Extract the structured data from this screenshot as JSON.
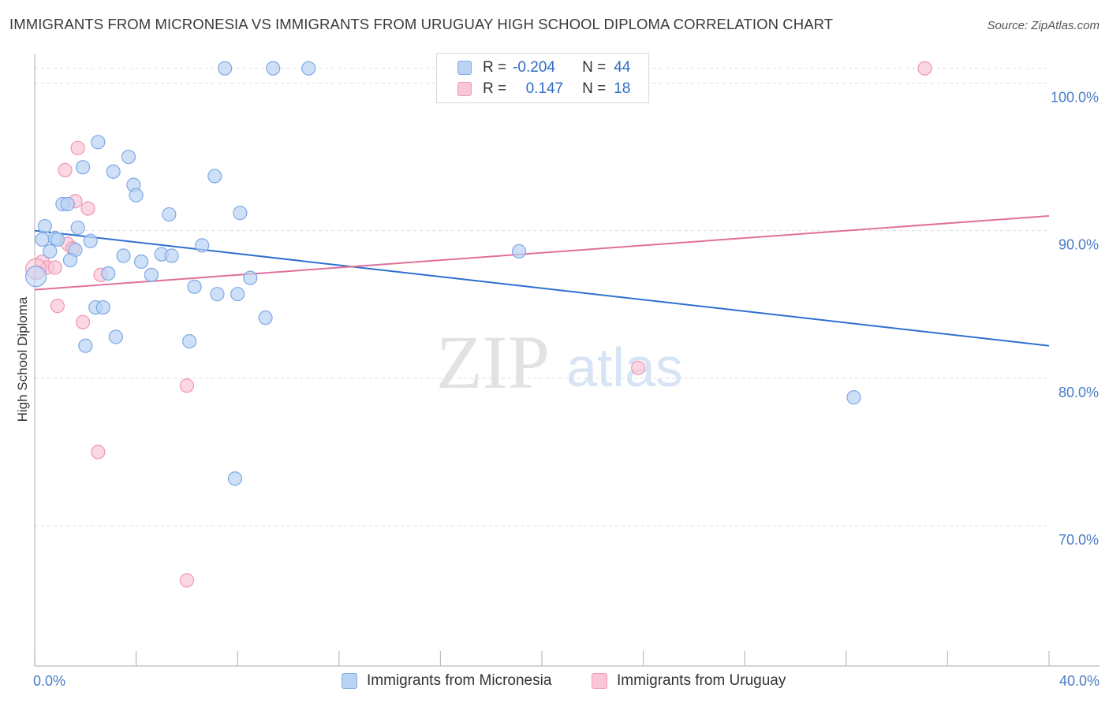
{
  "title": "IMMIGRANTS FROM MICRONESIA VS IMMIGRANTS FROM URUGUAY HIGH SCHOOL DIPLOMA CORRELATION CHART",
  "source": "Source: ZipAtlas.com",
  "watermark": {
    "zip": "ZIP",
    "atlas": "atlas"
  },
  "legend": {
    "rows": [
      {
        "r_label": "R =",
        "r_value": "-0.204",
        "n_label": "N =",
        "n_value": "44"
      },
      {
        "r_label": "R =",
        "r_value": "0.147",
        "n_label": "N =",
        "n_value": "18"
      }
    ]
  },
  "colors": {
    "micronesia_fill": "#b9d3f5",
    "micronesia_stroke": "#7ea9e4",
    "micronesia_line": "#2f6fd0",
    "uruguay_fill": "#f9c6d6",
    "uruguay_stroke": "#ef97b5",
    "uruguay_line": "#e0709a",
    "tick_label": "#4a7cc7",
    "grid": "#dddddd"
  },
  "chart_data": {
    "type": "scatter",
    "title": "IMMIGRANTS FROM MICRONESIA VS IMMIGRANTS FROM URUGUAY HIGH SCHOOL DIPLOMA CORRELATION CHART",
    "xlabel": "",
    "ylabel": "High School Diploma",
    "xlim": [
      0,
      40
    ],
    "ylim": [
      60.5,
      102
    ],
    "x_tick_labels": [
      "0.0%",
      "40.0%"
    ],
    "y_ticks": [
      {
        "value": 70,
        "label": "70.0%"
      },
      {
        "value": 80,
        "label": "80.0%"
      },
      {
        "value": 90,
        "label": "90.0%"
      },
      {
        "value": 100,
        "label": "100.0%"
      }
    ],
    "series": [
      {
        "name": "Immigrants from Micronesia",
        "r": -0.204,
        "n": 44,
        "trend": {
          "x": [
            0,
            40
          ],
          "y": [
            90.0,
            82.2
          ]
        },
        "points": [
          [
            7.5,
            101.0
          ],
          [
            9.4,
            101.0
          ],
          [
            10.8,
            101.0
          ],
          [
            2.5,
            96.0
          ],
          [
            1.9,
            94.3
          ],
          [
            3.1,
            94.0
          ],
          [
            3.7,
            95.0
          ],
          [
            7.1,
            93.7
          ],
          [
            3.9,
            93.1
          ],
          [
            4.0,
            92.4
          ],
          [
            1.1,
            91.8
          ],
          [
            1.3,
            91.8
          ],
          [
            5.3,
            91.1
          ],
          [
            8.1,
            91.2
          ],
          [
            0.4,
            90.3
          ],
          [
            1.7,
            90.2
          ],
          [
            0.3,
            89.4
          ],
          [
            0.8,
            89.5
          ],
          [
            0.9,
            89.4
          ],
          [
            2.2,
            89.3
          ],
          [
            6.6,
            89.0
          ],
          [
            0.6,
            88.6
          ],
          [
            1.6,
            88.7
          ],
          [
            3.5,
            88.3
          ],
          [
            5.0,
            88.4
          ],
          [
            5.4,
            88.3
          ],
          [
            1.4,
            88.0
          ],
          [
            4.2,
            87.9
          ],
          [
            19.1,
            88.6
          ],
          [
            2.9,
            87.1
          ],
          [
            4.6,
            87.0
          ],
          [
            8.5,
            86.8
          ],
          [
            6.3,
            86.2
          ],
          [
            7.2,
            85.7
          ],
          [
            8.0,
            85.7
          ],
          [
            0.05,
            86.9
          ],
          [
            2.4,
            84.8
          ],
          [
            2.7,
            84.8
          ],
          [
            9.1,
            84.1
          ],
          [
            3.2,
            82.8
          ],
          [
            6.1,
            82.5
          ],
          [
            2.0,
            82.2
          ],
          [
            32.3,
            78.7
          ],
          [
            7.9,
            73.2
          ]
        ]
      },
      {
        "name": "Immigrants from Uruguay",
        "r": 0.147,
        "n": 18,
        "trend": {
          "x": [
            0,
            40
          ],
          "y": [
            86.0,
            91.0
          ]
        },
        "points": [
          [
            35.1,
            101.0
          ],
          [
            1.7,
            95.6
          ],
          [
            1.2,
            94.1
          ],
          [
            1.6,
            92.0
          ],
          [
            2.1,
            91.5
          ],
          [
            1.3,
            89.1
          ],
          [
            1.5,
            88.8
          ],
          [
            0.3,
            87.9
          ],
          [
            0.5,
            87.5
          ],
          [
            0.8,
            87.5
          ],
          [
            2.6,
            87.0
          ],
          [
            0.9,
            84.9
          ],
          [
            1.9,
            83.8
          ],
          [
            23.8,
            80.7
          ],
          [
            6.0,
            79.5
          ],
          [
            2.5,
            75.0
          ],
          [
            6.0,
            66.3
          ],
          [
            0.05,
            87.4
          ]
        ]
      }
    ]
  }
}
